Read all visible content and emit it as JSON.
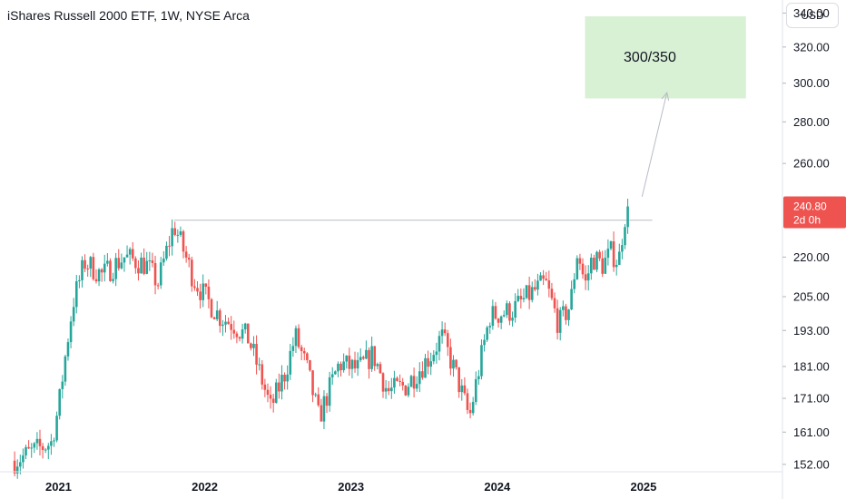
{
  "header": {
    "title": "iShares Russell 2000 ETF, 1W, NYSE Arca"
  },
  "currency_button": {
    "label": "USD"
  },
  "colors": {
    "up": "#26a69a",
    "down": "#ef5350",
    "box": "#d8f0d4",
    "axis_text": "#131722",
    "resistance": "#c7c9cf"
  },
  "chart_data": {
    "type": "candlestick",
    "title": "iShares Russell 2000 ETF, 1W, NYSE Arca",
    "x_tick_labels": [
      "2021",
      "2022",
      "2023",
      "2024",
      "2025"
    ],
    "x_tick_years": [
      2021,
      2022,
      2023,
      2024,
      2025
    ],
    "y_tick_labels": [
      "340.00",
      "320.00",
      "300.00",
      "280.00",
      "260.00",
      "220.00",
      "205.00",
      "193.00",
      "181.00",
      "171.00",
      "161.00",
      "152.00"
    ],
    "y_ticks": [
      340,
      320,
      300,
      280,
      260,
      220,
      205,
      193,
      181,
      171,
      161,
      152
    ],
    "y_scale": "log",
    "ylim": [
      150,
      348
    ],
    "xlim": [
      2020.6,
      2025.95
    ],
    "last_price": {
      "value": 240.8,
      "label": "240.80",
      "countdown": "2d 0h"
    },
    "annotations": {
      "target_box": {
        "text": "300/350",
        "x_start": 2024.6,
        "x_end": 2025.7,
        "y_low": 292,
        "y_high": 338
      },
      "resistance_line": {
        "y": 235,
        "x_start": 2021.79,
        "x_end": 2025.06
      },
      "arrow": {
        "x_start": 2024.99,
        "y_start": 245,
        "x_end": 2025.16,
        "y_end": 295
      }
    },
    "waypoints": [
      [
        2020.7,
        153
      ],
      [
        2020.95,
        158
      ],
      [
        2021.0,
        168
      ],
      [
        2021.1,
        203
      ],
      [
        2021.18,
        218
      ],
      [
        2021.3,
        213
      ],
      [
        2021.45,
        220
      ],
      [
        2021.6,
        217
      ],
      [
        2021.68,
        210
      ],
      [
        2021.79,
        233
      ],
      [
        2021.92,
        212
      ],
      [
        2022.0,
        205
      ],
      [
        2022.1,
        198
      ],
      [
        2022.2,
        195
      ],
      [
        2022.3,
        190
      ],
      [
        2022.45,
        168
      ],
      [
        2022.55,
        179
      ],
      [
        2022.62,
        191
      ],
      [
        2022.7,
        180
      ],
      [
        2022.78,
        165
      ],
      [
        2022.92,
        182
      ],
      [
        2023.05,
        180
      ],
      [
        2023.15,
        185
      ],
      [
        2023.25,
        173
      ],
      [
        2023.38,
        175
      ],
      [
        2023.55,
        185
      ],
      [
        2023.62,
        191
      ],
      [
        2023.72,
        178
      ],
      [
        2023.81,
        165
      ],
      [
        2023.95,
        198
      ],
      [
        2024.1,
        200
      ],
      [
        2024.25,
        207
      ],
      [
        2024.33,
        210
      ],
      [
        2024.42,
        195
      ],
      [
        2024.5,
        202
      ],
      [
        2024.55,
        223
      ],
      [
        2024.6,
        209
      ],
      [
        2024.65,
        220
      ],
      [
        2024.72,
        217
      ],
      [
        2024.78,
        222
      ],
      [
        2024.83,
        218
      ],
      [
        2024.87,
        236
      ],
      [
        2024.9,
        240.8
      ]
    ]
  }
}
